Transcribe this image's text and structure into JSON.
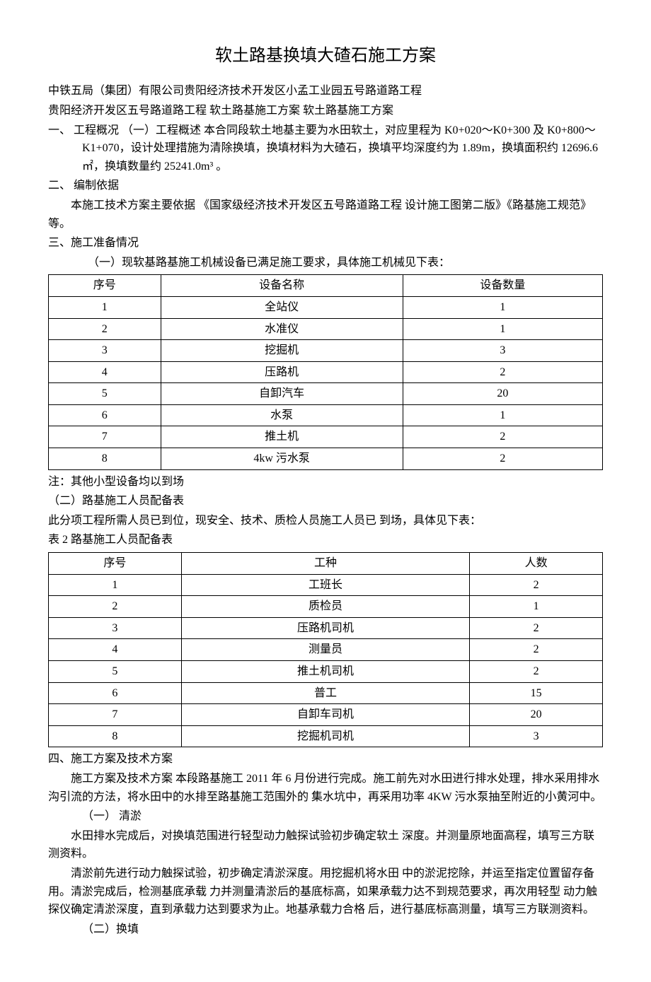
{
  "title": "软土路基换填大碴石施工方案",
  "subtitle1": "中铁五局（集团）有限公司贵阳经济技术开发区小孟工业园五号路道路工程",
  "subtitle2": "贵阳经济开发区五号路道路工程 软土路基施工方案 软土路基施工方案",
  "section1": "一、  工程概况  （一）工程概述  本合同段软土地基主要为水田软土，对应里程为 K0+020～K0+300 及 K0+800～K1+070，设计处理措施为清除换填，换填材料为大碴石，换填平均深度约为 1.89m，换填面积约 12696.6 ㎡，换填数量约 25241.0m³ 。",
  "section2_heading": "二、  编制依据",
  "section2_body": "本施工技术方案主要依据 《国家级经济技术开发区五号路道路工程 设计施工图第二版》《路基施工规范》等。",
  "section3_heading": "三、施工准备情况",
  "section3_sub1": "（一）现软基路基施工机械设备已满足施工要求，具体施工机械见下表：",
  "table1": {
    "headers": [
      "序号",
      "设备名称",
      "设备数量"
    ],
    "rows": [
      [
        "1",
        "全站仪",
        "1"
      ],
      [
        "2",
        "水准仪",
        "1"
      ],
      [
        "3",
        "挖掘机",
        "3"
      ],
      [
        "4",
        "压路机",
        "2"
      ],
      [
        "5",
        "自卸汽车",
        "20"
      ],
      [
        "6",
        "水泵",
        "1"
      ],
      [
        "7",
        "推土机",
        "2"
      ],
      [
        "8",
        "4kw 污水泵",
        "2"
      ]
    ]
  },
  "table1_note": "注：其他小型设备均以到场",
  "section3_sub2": "（二）路基施工人员配备表",
  "section3_sub2_body": "此分项工程所需人员已到位，现安全、技术、质检人员施工人员已  到场，具体见下表：",
  "table2_caption": "表 2 路基施工人员配备表",
  "table2": {
    "headers": [
      "序号",
      "工种",
      "人数"
    ],
    "rows": [
      [
        "1",
        "工班长",
        "2"
      ],
      [
        "2",
        "质检员",
        "1"
      ],
      [
        "3",
        "压路机司机",
        "2"
      ],
      [
        "4",
        "测量员",
        "2"
      ],
      [
        "5",
        "推土机司机",
        "2"
      ],
      [
        "6",
        "普工",
        "15"
      ],
      [
        "7",
        "自卸车司机",
        "20"
      ],
      [
        "8",
        "挖掘机司机",
        "3"
      ]
    ]
  },
  "section4_heading": "四、施工方案及技术方案",
  "section4_p1": "施工方案及技术方案 本段路基施工 2011 年 6 月份进行完成。施工前先对水田进行排水处理，排水采用排水沟引流的方法，将水田中的水排至路基施工范围外的 集水坑中，再采用功率 4KW 污水泵抽至附近的小黄河中。",
  "section4_sub1_heading": "（一）  清淤",
  "section4_sub1_p1": "水田排水完成后，对换填范围进行轻型动力触探试验初步确定软土 深度。并测量原地面高程，填写三方联测资料。",
  "section4_sub1_p2": "清淤前先进行动力触探试验，初步确定清淤深度。用挖掘机将水田 中的淤泥挖除，并运至指定位置留存备用。清淤完成后，检测基底承载 力并测量清淤后的基底标高，如果承载力达不到规范要求，再次用轻型 动力触探仪确定清淤深度，直到承载力达到要求为止。地基承载力合格 后，进行基底标高测量，填写三方联测资料。",
  "section4_sub2_heading": "（二）换填"
}
